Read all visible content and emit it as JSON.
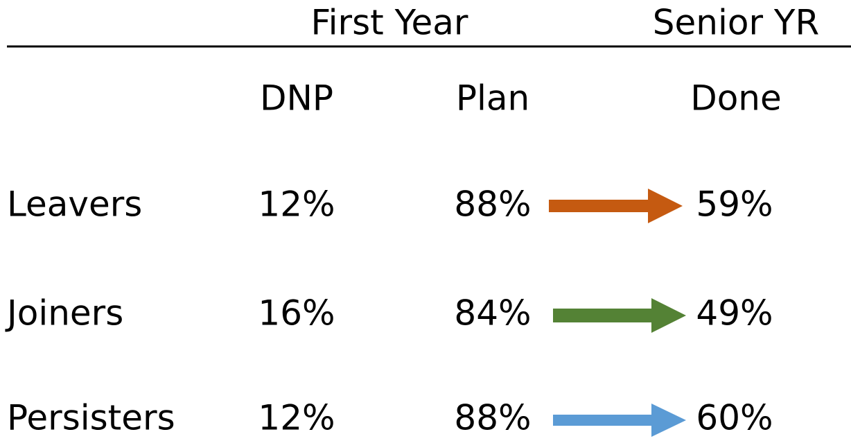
{
  "header": {
    "groups": [
      "First Year",
      "Senior YR"
    ]
  },
  "table": {
    "columns": [
      "DNP",
      "Plan",
      "Done"
    ],
    "rows": [
      [
        "Leavers",
        "12%",
        "88%",
        "59%"
      ],
      [
        "Joiners",
        "16%",
        "84%",
        "49%"
      ],
      [
        "Persisters",
        "12%",
        "88%",
        "60%"
      ]
    ]
  }
}
